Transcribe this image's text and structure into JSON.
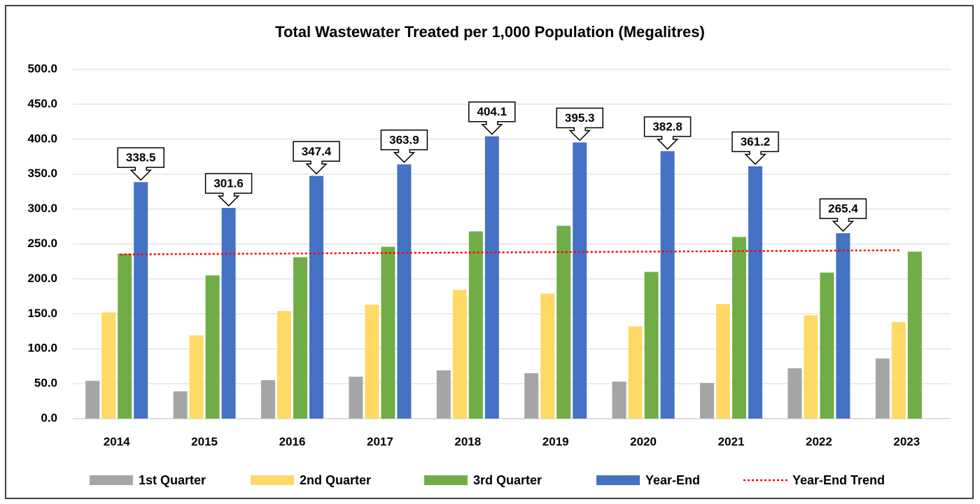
{
  "chart_data": {
    "type": "bar",
    "title": "Total Wastewater Treated per 1,000 Population (Megalitres)",
    "categories": [
      "2014",
      "2015",
      "2016",
      "2017",
      "2018",
      "2019",
      "2020",
      "2021",
      "2022",
      "2023"
    ],
    "series": [
      {
        "name": "1st Quarter",
        "color": "#a5a5a5",
        "values": [
          54,
          39,
          55,
          60,
          69,
          65,
          53,
          51,
          72,
          86
        ]
      },
      {
        "name": "2nd Quarter",
        "color": "#ffd966",
        "values": [
          152,
          119,
          154,
          163,
          184,
          179,
          132,
          164,
          148,
          138
        ]
      },
      {
        "name": "3rd Quarter",
        "color": "#70ad47",
        "values": [
          236,
          205,
          231,
          246,
          268,
          276,
          210,
          260,
          209,
          239
        ]
      },
      {
        "name": "Year-End",
        "color": "#4472c4",
        "values": [
          338.5,
          301.6,
          347.4,
          363.9,
          404.1,
          395.3,
          382.8,
          361.2,
          265.4,
          null
        ],
        "data_labels": true
      },
      {
        "name": "Year-End Trend",
        "type": "line",
        "color": "#ff0000",
        "dashed": true,
        "values": [
          235,
          235.7,
          236.3,
          237,
          237.7,
          238.3,
          239,
          239.7,
          240.3,
          241
        ]
      }
    ],
    "ylim": [
      0,
      500
    ],
    "yticks": [
      {
        "value": 0,
        "label": "0.0"
      },
      {
        "value": 50,
        "label": "50.0"
      },
      {
        "value": 100,
        "label": "100.0"
      },
      {
        "value": 150,
        "label": "150.0"
      },
      {
        "value": 200,
        "label": "200.0"
      },
      {
        "value": 250,
        "label": "250.0"
      },
      {
        "value": 300,
        "label": "300.0"
      },
      {
        "value": 350,
        "label": "350.0"
      },
      {
        "value": 400,
        "label": "400.0"
      },
      {
        "value": 450,
        "label": "450.0"
      },
      {
        "value": 500,
        "label": "500.0"
      }
    ],
    "grid": true,
    "legend": "bottom"
  }
}
